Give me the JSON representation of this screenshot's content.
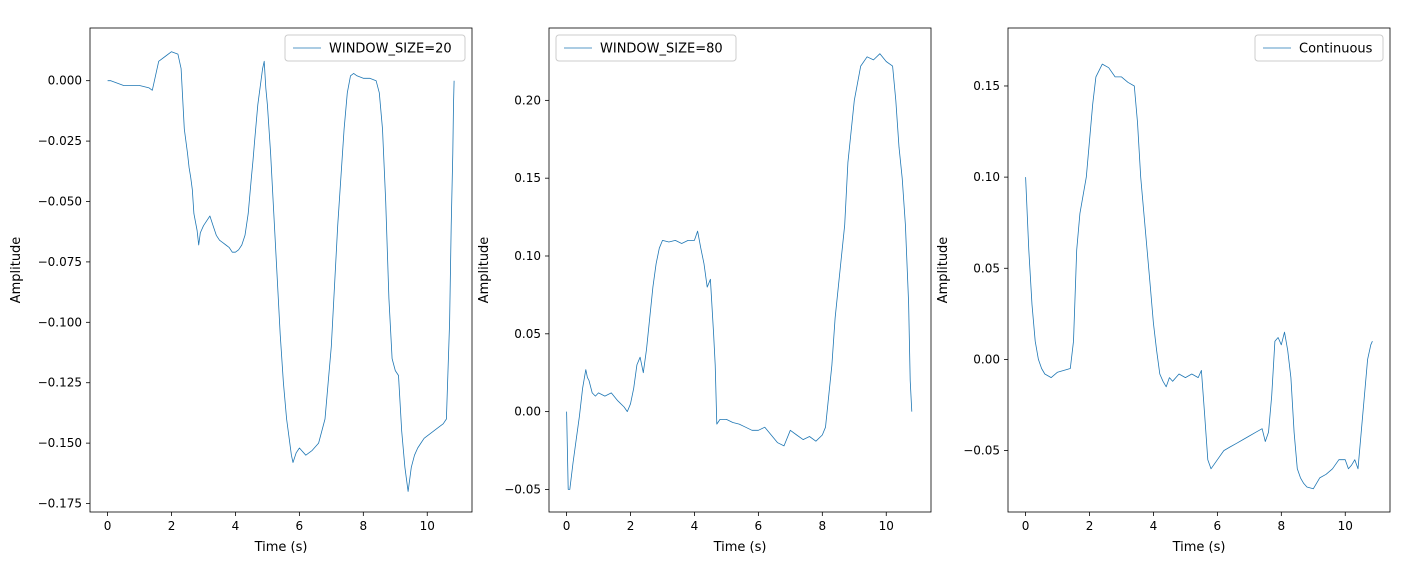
{
  "series_color": "#1f77b4",
  "chart_data": [
    {
      "type": "line",
      "xlabel": "Time (s)",
      "ylabel": "Amplitude",
      "xlim": [
        -0.55,
        11.4
      ],
      "ylim": [
        -0.1785,
        0.0218
      ],
      "xticks": [
        0,
        2,
        4,
        6,
        8,
        10
      ],
      "xtick_labels": [
        "0",
        "2",
        "4",
        "6",
        "8",
        "10"
      ],
      "yticks": [
        0.0,
        -0.025,
        -0.05,
        -0.075,
        -0.1,
        -0.125,
        -0.15,
        -0.175
      ],
      "ytick_labels": [
        "0.000",
        "−0.025",
        "−0.050",
        "−0.075",
        "−0.100",
        "−0.125",
        "−0.150",
        "−0.175"
      ],
      "legend_position": "top-right",
      "series": [
        {
          "name": "WINDOW_SIZE=20",
          "x": [
            0.0,
            0.1,
            0.3,
            0.5,
            0.8,
            1.0,
            1.3,
            1.4,
            1.5,
            1.6,
            1.8,
            2.0,
            2.2,
            2.3,
            2.4,
            2.5,
            2.55,
            2.6,
            2.65,
            2.7,
            2.8,
            2.85,
            2.9,
            3.0,
            3.1,
            3.2,
            3.3,
            3.4,
            3.5,
            3.6,
            3.7,
            3.8,
            3.9,
            4.0,
            4.1,
            4.2,
            4.3,
            4.4,
            4.5,
            4.55,
            4.6,
            4.7,
            4.8,
            4.85,
            4.9,
            4.95,
            5.0,
            5.1,
            5.2,
            5.3,
            5.4,
            5.5,
            5.6,
            5.7,
            5.75,
            5.8,
            5.9,
            6.0,
            6.2,
            6.4,
            6.6,
            6.7,
            6.8,
            7.0,
            7.2,
            7.4,
            7.5,
            7.6,
            7.7,
            7.8,
            8.0,
            8.2,
            8.4,
            8.5,
            8.6,
            8.7,
            8.8,
            8.9,
            9.0,
            9.1,
            9.2,
            9.3,
            9.35,
            9.4,
            9.5,
            9.6,
            9.7,
            9.8,
            9.9,
            10.0,
            10.2,
            10.4,
            10.5,
            10.6,
            10.65,
            10.7,
            10.75,
            10.8,
            10.82,
            10.84
          ],
          "y": [
            0.0,
            0.0,
            -0.001,
            -0.002,
            -0.002,
            -0.002,
            -0.003,
            -0.004,
            0.002,
            0.008,
            0.01,
            0.012,
            0.011,
            0.005,
            -0.02,
            -0.03,
            -0.036,
            -0.04,
            -0.045,
            -0.055,
            -0.062,
            -0.068,
            -0.063,
            -0.06,
            -0.058,
            -0.056,
            -0.06,
            -0.064,
            -0.066,
            -0.067,
            -0.068,
            -0.069,
            -0.071,
            -0.071,
            -0.07,
            -0.068,
            -0.064,
            -0.055,
            -0.04,
            -0.033,
            -0.025,
            -0.01,
            0.0,
            0.005,
            0.008,
            -0.003,
            -0.01,
            -0.03,
            -0.055,
            -0.08,
            -0.105,
            -0.125,
            -0.14,
            -0.15,
            -0.155,
            -0.158,
            -0.154,
            -0.152,
            -0.155,
            -0.153,
            -0.15,
            -0.145,
            -0.14,
            -0.11,
            -0.06,
            -0.02,
            -0.005,
            0.002,
            0.003,
            0.002,
            0.001,
            0.001,
            0.0,
            -0.005,
            -0.02,
            -0.05,
            -0.09,
            -0.115,
            -0.12,
            -0.122,
            -0.145,
            -0.16,
            -0.165,
            -0.17,
            -0.16,
            -0.155,
            -0.152,
            -0.15,
            -0.148,
            -0.147,
            -0.145,
            -0.143,
            -0.142,
            -0.14,
            -0.12,
            -0.1,
            -0.06,
            -0.03,
            -0.01,
            0.0
          ]
        }
      ]
    },
    {
      "type": "line",
      "xlabel": "Time (s)",
      "ylabel": "Amplitude",
      "xlim": [
        -0.55,
        11.4
      ],
      "ylim": [
        -0.0645,
        0.2465
      ],
      "xticks": [
        0,
        2,
        4,
        6,
        8,
        10
      ],
      "xtick_labels": [
        "0",
        "2",
        "4",
        "6",
        "8",
        "10"
      ],
      "yticks": [
        -0.05,
        0.0,
        0.05,
        0.1,
        0.15,
        0.2
      ],
      "ytick_labels": [
        "−0.05",
        "0.00",
        "0.05",
        "0.10",
        "0.15",
        "0.20"
      ],
      "legend_position": "top-left",
      "series": [
        {
          "name": "WINDOW_SIZE=80",
          "x": [
            0.0,
            0.05,
            0.1,
            0.2,
            0.3,
            0.4,
            0.5,
            0.6,
            0.65,
            0.7,
            0.8,
            0.9,
            1.0,
            1.2,
            1.4,
            1.6,
            1.8,
            1.9,
            2.0,
            2.1,
            2.2,
            2.3,
            2.4,
            2.5,
            2.6,
            2.7,
            2.8,
            2.9,
            3.0,
            3.2,
            3.4,
            3.6,
            3.8,
            4.0,
            4.1,
            4.2,
            4.3,
            4.4,
            4.5,
            4.6,
            4.65,
            4.7,
            4.8,
            5.0,
            5.2,
            5.4,
            5.6,
            5.8,
            6.0,
            6.2,
            6.4,
            6.6,
            6.8,
            7.0,
            7.2,
            7.4,
            7.6,
            7.8,
            8.0,
            8.1,
            8.2,
            8.3,
            8.4,
            8.5,
            8.6,
            8.7,
            8.8,
            8.9,
            9.0,
            9.2,
            9.4,
            9.6,
            9.8,
            10.0,
            10.2,
            10.3,
            10.4,
            10.5,
            10.6,
            10.7,
            10.75,
            10.8
          ],
          "y": [
            0.0,
            -0.05,
            -0.05,
            -0.033,
            -0.018,
            -0.003,
            0.015,
            0.027,
            0.022,
            0.02,
            0.012,
            0.01,
            0.012,
            0.01,
            0.012,
            0.007,
            0.003,
            0.0,
            0.005,
            0.015,
            0.03,
            0.035,
            0.025,
            0.04,
            0.06,
            0.08,
            0.095,
            0.105,
            0.11,
            0.109,
            0.11,
            0.108,
            0.11,
            0.11,
            0.116,
            0.105,
            0.095,
            0.08,
            0.085,
            0.05,
            0.03,
            -0.008,
            -0.005,
            -0.005,
            -0.007,
            -0.008,
            -0.01,
            -0.012,
            -0.012,
            -0.01,
            -0.015,
            -0.02,
            -0.022,
            -0.012,
            -0.015,
            -0.018,
            -0.016,
            -0.019,
            -0.015,
            -0.01,
            0.01,
            0.03,
            0.06,
            0.08,
            0.1,
            0.12,
            0.16,
            0.18,
            0.2,
            0.222,
            0.228,
            0.226,
            0.23,
            0.225,
            0.222,
            0.2,
            0.17,
            0.15,
            0.12,
            0.07,
            0.02,
            0.0
          ]
        }
      ]
    },
    {
      "type": "line",
      "xlabel": "Time (s)",
      "ylabel": "Amplitude",
      "xlim": [
        -0.55,
        11.4
      ],
      "ylim": [
        -0.0837,
        0.1818
      ],
      "xticks": [
        0,
        2,
        4,
        6,
        8,
        10
      ],
      "xtick_labels": [
        "0",
        "2",
        "4",
        "6",
        "8",
        "10"
      ],
      "yticks": [
        -0.05,
        0.0,
        0.05,
        0.1,
        0.15
      ],
      "ytick_labels": [
        "−0.05",
        "0.00",
        "0.05",
        "0.10",
        "0.15"
      ],
      "legend_position": "top-right",
      "series": [
        {
          "name": "Continuous",
          "x": [
            0.0,
            0.1,
            0.2,
            0.3,
            0.4,
            0.5,
            0.6,
            0.8,
            1.0,
            1.2,
            1.4,
            1.5,
            1.6,
            1.7,
            1.8,
            1.9,
            2.0,
            2.1,
            2.2,
            2.4,
            2.6,
            2.8,
            3.0,
            3.2,
            3.4,
            3.5,
            3.6,
            3.7,
            3.8,
            3.9,
            4.0,
            4.1,
            4.2,
            4.3,
            4.4,
            4.5,
            4.6,
            4.8,
            5.0,
            5.2,
            5.4,
            5.5,
            5.6,
            5.7,
            5.8,
            6.0,
            6.2,
            6.4,
            6.6,
            6.8,
            7.0,
            7.2,
            7.4,
            7.5,
            7.6,
            7.7,
            7.8,
            7.9,
            8.0,
            8.1,
            8.2,
            8.3,
            8.4,
            8.5,
            8.6,
            8.7,
            8.8,
            9.0,
            9.2,
            9.4,
            9.6,
            9.8,
            10.0,
            10.1,
            10.2,
            10.3,
            10.4,
            10.5,
            10.6,
            10.7,
            10.8,
            10.85
          ],
          "y": [
            0.1,
            0.06,
            0.03,
            0.01,
            0.0,
            -0.005,
            -0.008,
            -0.01,
            -0.007,
            -0.006,
            -0.005,
            0.01,
            0.06,
            0.08,
            0.09,
            0.1,
            0.12,
            0.14,
            0.155,
            0.162,
            0.16,
            0.155,
            0.155,
            0.152,
            0.15,
            0.13,
            0.1,
            0.08,
            0.06,
            0.04,
            0.02,
            0.005,
            -0.008,
            -0.012,
            -0.015,
            -0.01,
            -0.012,
            -0.008,
            -0.01,
            -0.008,
            -0.01,
            -0.006,
            -0.03,
            -0.055,
            -0.06,
            -0.055,
            -0.05,
            -0.048,
            -0.046,
            -0.044,
            -0.042,
            -0.04,
            -0.038,
            -0.045,
            -0.04,
            -0.02,
            0.01,
            0.012,
            0.008,
            0.015,
            0.005,
            -0.01,
            -0.04,
            -0.06,
            -0.065,
            -0.068,
            -0.07,
            -0.071,
            -0.065,
            -0.063,
            -0.06,
            -0.055,
            -0.055,
            -0.06,
            -0.058,
            -0.055,
            -0.06,
            -0.04,
            -0.02,
            0.0,
            0.008,
            0.01
          ]
        }
      ]
    }
  ]
}
